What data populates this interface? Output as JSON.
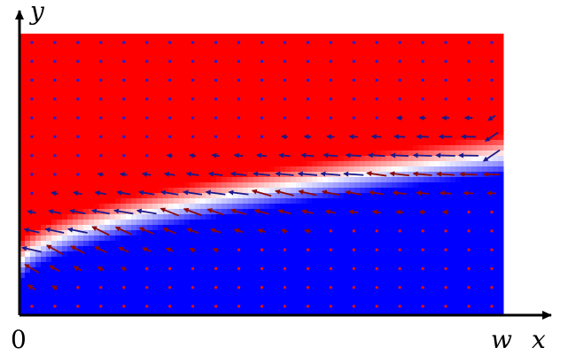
{
  "labels": {
    "y_axis": "y",
    "x_axis": "x",
    "origin": "0",
    "width_mark": "w"
  },
  "colors": {
    "upper_region": "#ff0000",
    "lower_region": "#0000ff",
    "interface": "#ffffff",
    "arrow_upper": "#1a1a8a",
    "arrow_lower": "#8a0a0a",
    "dot_upper": "#1f1fd0",
    "dot_lower": "#e01010",
    "axis": "#000000"
  }
}
